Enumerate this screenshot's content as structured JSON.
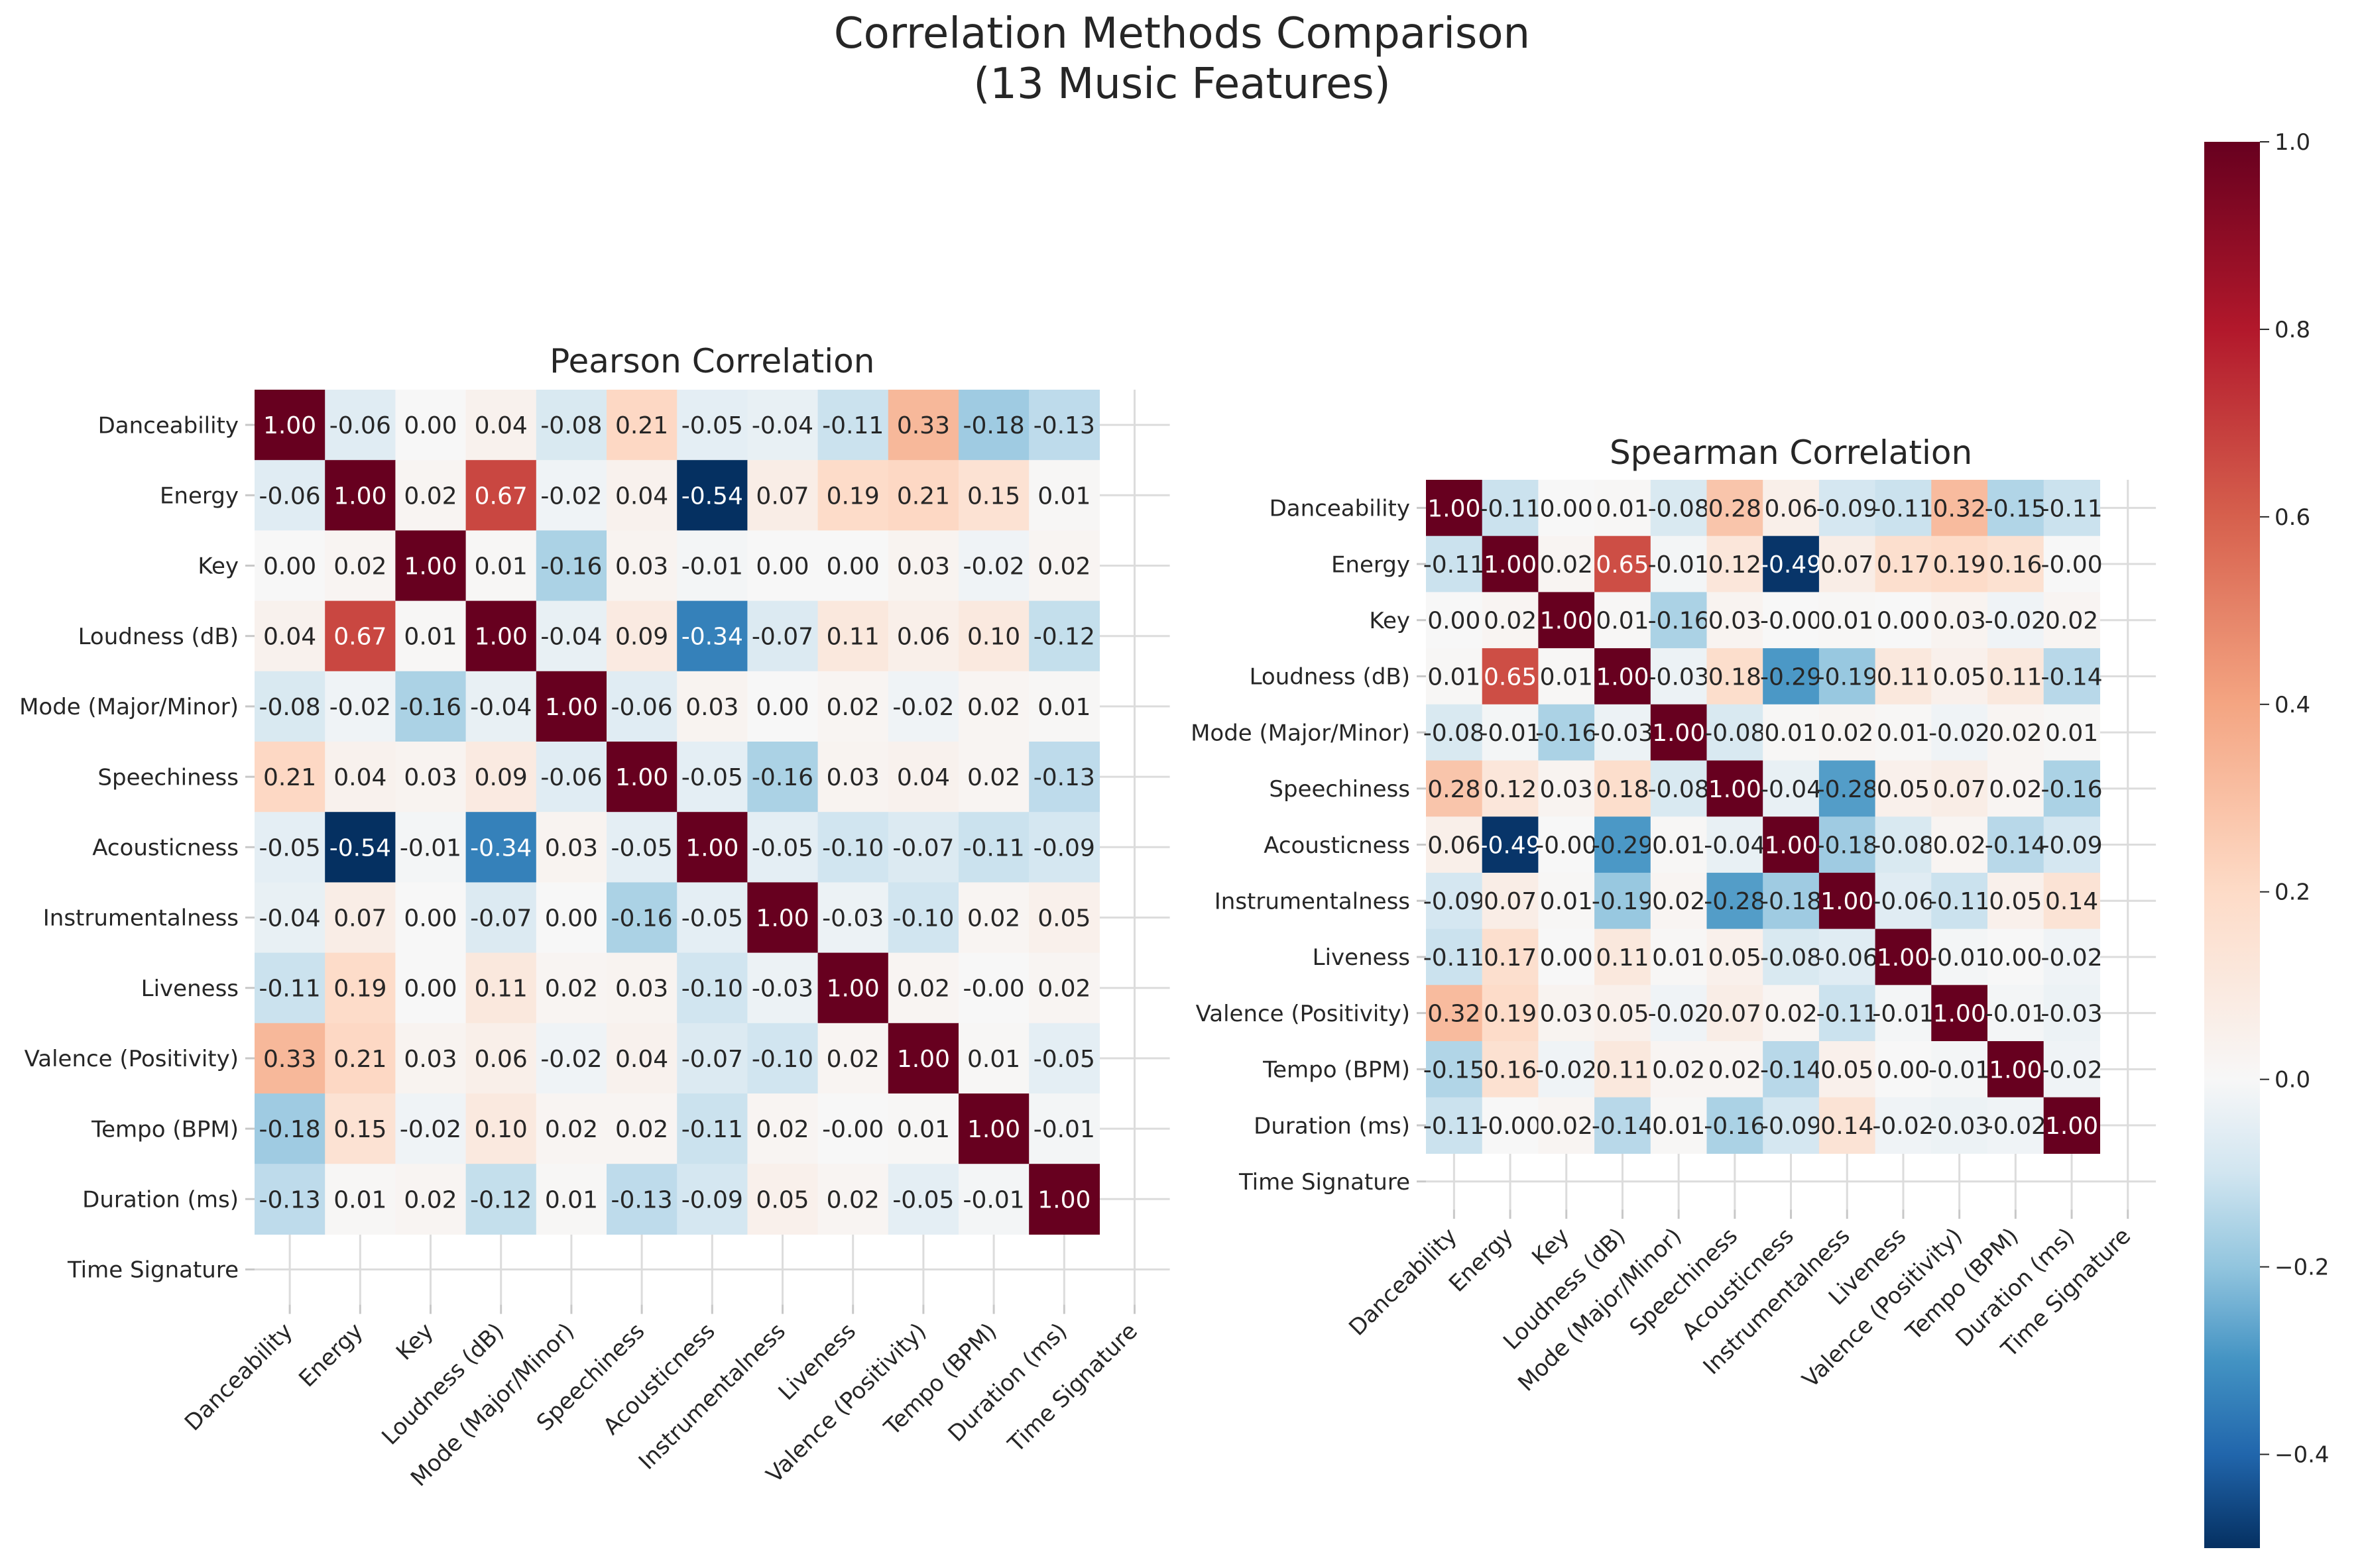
{
  "figure": {
    "title_line1": "Correlation Methods Comparison",
    "title_line2": "(13 Music Features)"
  },
  "colorbar": {
    "vmin": -0.5,
    "vmax": 1.0,
    "ticks": [
      1.0,
      0.8,
      0.6,
      0.4,
      0.2,
      0.0,
      -0.2,
      -0.4
    ],
    "tick_labels": [
      "1.0",
      "0.8",
      "0.6",
      "0.4",
      "0.2",
      "0.0",
      "−0.2",
      "−0.4"
    ],
    "colormap": "RdBu_r"
  },
  "chart_data": [
    {
      "type": "heatmap",
      "title": "Pearson Correlation",
      "labels": [
        "Danceability",
        "Energy",
        "Key",
        "Loudness (dB)",
        "Mode (Major/Minor)",
        "Speechiness",
        "Acousticness",
        "Instrumentalness",
        "Liveness",
        "Valence (Positivity)",
        "Tempo (BPM)",
        "Duration (ms)",
        "Time Signature"
      ],
      "values": [
        [
          1.0,
          -0.06,
          0.0,
          0.04,
          -0.08,
          0.21,
          -0.05,
          -0.04,
          -0.11,
          0.33,
          -0.18,
          -0.13,
          null
        ],
        [
          -0.06,
          1.0,
          0.02,
          0.67,
          -0.02,
          0.04,
          -0.54,
          0.07,
          0.19,
          0.21,
          0.15,
          0.01,
          null
        ],
        [
          0.0,
          0.02,
          1.0,
          0.01,
          -0.16,
          0.03,
          -0.01,
          0.0,
          0.0,
          0.03,
          -0.02,
          0.02,
          null
        ],
        [
          0.04,
          0.67,
          0.01,
          1.0,
          -0.04,
          0.09,
          -0.34,
          -0.07,
          0.11,
          0.06,
          0.1,
          -0.12,
          null
        ],
        [
          -0.08,
          -0.02,
          -0.16,
          -0.04,
          1.0,
          -0.06,
          0.03,
          0.0,
          0.02,
          -0.02,
          0.02,
          0.01,
          null
        ],
        [
          0.21,
          0.04,
          0.03,
          0.09,
          -0.06,
          1.0,
          -0.05,
          -0.16,
          0.03,
          0.04,
          0.02,
          -0.13,
          null
        ],
        [
          -0.05,
          -0.54,
          -0.01,
          -0.34,
          0.03,
          -0.05,
          1.0,
          -0.05,
          -0.1,
          -0.07,
          -0.11,
          -0.09,
          null
        ],
        [
          -0.04,
          0.07,
          0.0,
          -0.07,
          0.0,
          -0.16,
          -0.05,
          1.0,
          -0.03,
          -0.1,
          0.02,
          0.05,
          null
        ],
        [
          -0.11,
          0.19,
          0.0,
          0.11,
          0.02,
          0.03,
          -0.1,
          -0.03,
          1.0,
          0.02,
          -0.0,
          0.02,
          null
        ],
        [
          0.33,
          0.21,
          0.03,
          0.06,
          -0.02,
          0.04,
          -0.07,
          -0.1,
          0.02,
          1.0,
          0.01,
          -0.05,
          null
        ],
        [
          -0.18,
          0.15,
          -0.02,
          0.1,
          0.02,
          0.02,
          -0.11,
          0.02,
          -0.0,
          0.01,
          1.0,
          -0.01,
          null
        ],
        [
          -0.13,
          0.01,
          0.02,
          -0.12,
          0.01,
          -0.13,
          -0.09,
          0.05,
          0.02,
          -0.05,
          -0.01,
          1.0,
          null
        ],
        [
          null,
          null,
          null,
          null,
          null,
          null,
          null,
          null,
          null,
          null,
          null,
          null,
          null
        ]
      ]
    },
    {
      "type": "heatmap",
      "title": "Spearman Correlation",
      "labels": [
        "Danceability",
        "Energy",
        "Key",
        "Loudness (dB)",
        "Mode (Major/Minor)",
        "Speechiness",
        "Acousticness",
        "Instrumentalness",
        "Liveness",
        "Valence (Positivity)",
        "Tempo (BPM)",
        "Duration (ms)",
        "Time Signature"
      ],
      "values": [
        [
          1.0,
          -0.11,
          0.0,
          0.01,
          -0.08,
          0.28,
          0.06,
          -0.09,
          -0.11,
          0.32,
          -0.15,
          -0.11,
          null
        ],
        [
          -0.11,
          1.0,
          0.02,
          0.65,
          -0.01,
          0.12,
          -0.49,
          0.07,
          0.17,
          0.19,
          0.16,
          -0.0,
          null
        ],
        [
          0.0,
          0.02,
          1.0,
          0.01,
          -0.16,
          0.03,
          -0.0,
          0.01,
          0.0,
          0.03,
          -0.02,
          0.02,
          null
        ],
        [
          0.01,
          0.65,
          0.01,
          1.0,
          -0.03,
          0.18,
          -0.29,
          -0.19,
          0.11,
          0.05,
          0.11,
          -0.14,
          null
        ],
        [
          -0.08,
          -0.01,
          -0.16,
          -0.03,
          1.0,
          -0.08,
          0.01,
          0.02,
          0.01,
          -0.02,
          0.02,
          0.01,
          null
        ],
        [
          0.28,
          0.12,
          0.03,
          0.18,
          -0.08,
          1.0,
          -0.04,
          -0.28,
          0.05,
          0.07,
          0.02,
          -0.16,
          null
        ],
        [
          0.06,
          -0.49,
          -0.0,
          -0.29,
          0.01,
          -0.04,
          1.0,
          -0.18,
          -0.08,
          0.02,
          -0.14,
          -0.09,
          null
        ],
        [
          -0.09,
          0.07,
          0.01,
          -0.19,
          0.02,
          -0.28,
          -0.18,
          1.0,
          -0.06,
          -0.11,
          0.05,
          0.14,
          null
        ],
        [
          -0.11,
          0.17,
          0.0,
          0.11,
          0.01,
          0.05,
          -0.08,
          -0.06,
          1.0,
          -0.01,
          0.0,
          -0.02,
          null
        ],
        [
          0.32,
          0.19,
          0.03,
          0.05,
          -0.02,
          0.07,
          0.02,
          -0.11,
          -0.01,
          1.0,
          -0.01,
          -0.03,
          null
        ],
        [
          -0.15,
          0.16,
          -0.02,
          0.11,
          0.02,
          0.02,
          -0.14,
          0.05,
          0.0,
          -0.01,
          1.0,
          -0.02,
          null
        ],
        [
          -0.11,
          -0.0,
          0.02,
          -0.14,
          0.01,
          -0.16,
          -0.09,
          0.14,
          -0.02,
          -0.03,
          -0.02,
          1.0,
          null
        ],
        [
          null,
          null,
          null,
          null,
          null,
          null,
          null,
          null,
          null,
          null,
          null,
          null,
          null
        ]
      ]
    }
  ]
}
